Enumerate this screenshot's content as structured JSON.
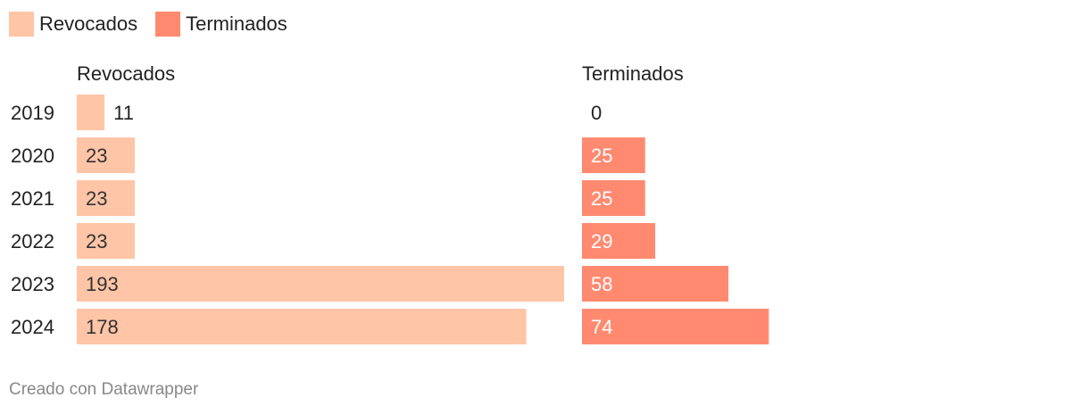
{
  "legend": [
    {
      "label": "Revocados",
      "color": "#ffc5a6"
    },
    {
      "label": "Terminados",
      "color": "#ff8a70"
    }
  ],
  "chart_data": {
    "type": "bar",
    "orientation": "horizontal",
    "layout": "split-bars",
    "categories": [
      "2019",
      "2020",
      "2021",
      "2022",
      "2023",
      "2024"
    ],
    "series": [
      {
        "name": "Revocados",
        "values": [
          11,
          23,
          23,
          23,
          193,
          178
        ],
        "color": "#ffc5a6",
        "label_color_inside": "#333333"
      },
      {
        "name": "Terminados",
        "values": [
          0,
          25,
          25,
          29,
          58,
          74
        ],
        "color": "#ff8a70",
        "label_color_inside": "#ffffff"
      }
    ],
    "title": "",
    "xlabel": "",
    "ylabel": ""
  },
  "footer": {
    "credit": "Creado con Datawrapper"
  }
}
